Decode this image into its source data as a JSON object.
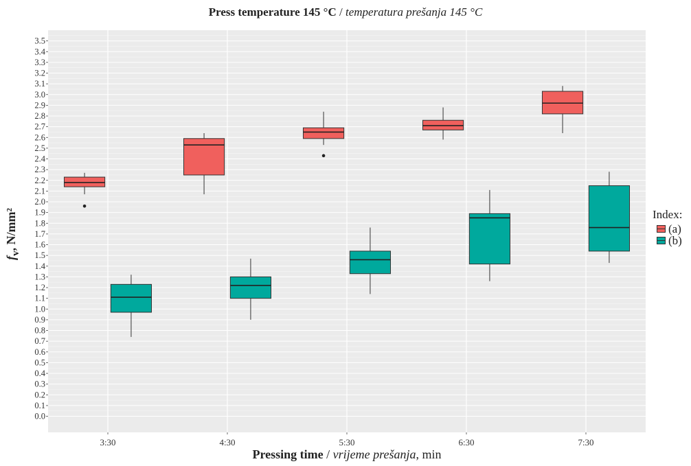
{
  "chart_data": {
    "type": "box",
    "title": {
      "bold": "Press temperature 145 °C",
      "sep": " / ",
      "italic": "temperatura prešanja 145 °C"
    },
    "xlabel": {
      "bold": "Pressing time",
      "sep": " / ",
      "italic": "vrijeme prešanja",
      "unit": ", min"
    },
    "ylabel": {
      "symbol": "f",
      "sub": "v",
      "unit": ", N/mm²"
    },
    "categories": [
      "3:30",
      "4:30",
      "5:30",
      "6:30",
      "7:30"
    ],
    "ylim": [
      -0.15,
      3.6
    ],
    "yticks": [
      "0.0",
      "0.1",
      "0.2",
      "0.3",
      "0.4",
      "0.5",
      "0.6",
      "0.7",
      "0.8",
      "0.9",
      "1.0",
      "1.1",
      "1.2",
      "1.3",
      "1.4",
      "1.5",
      "1.6",
      "1.7",
      "1.8",
      "1.9",
      "2.0",
      "2.1",
      "2.2",
      "2.3",
      "2.4",
      "2.5",
      "2.6",
      "2.7",
      "2.8",
      "2.9",
      "3.0",
      "3.1",
      "3.2",
      "3.3",
      "3.4",
      "3.5"
    ],
    "grid": true,
    "legend": {
      "title": "Index:",
      "position": "right"
    },
    "series": [
      {
        "name": "(a)",
        "color": "#F0605D",
        "boxes": [
          {
            "min": 2.07,
            "q1": 2.14,
            "median": 2.18,
            "q3": 2.23,
            "max": 2.27,
            "outliers": [
              1.96
            ]
          },
          {
            "min": 2.07,
            "q1": 2.25,
            "median": 2.53,
            "q3": 2.59,
            "max": 2.64,
            "outliers": []
          },
          {
            "min": 2.53,
            "q1": 2.59,
            "median": 2.65,
            "q3": 2.69,
            "max": 2.84,
            "outliers": [
              2.43
            ]
          },
          {
            "min": 2.58,
            "q1": 2.67,
            "median": 2.71,
            "q3": 2.76,
            "max": 2.88,
            "outliers": []
          },
          {
            "min": 2.64,
            "q1": 2.82,
            "median": 2.92,
            "q3": 3.03,
            "max": 3.08,
            "outliers": []
          }
        ]
      },
      {
        "name": "(b)",
        "color": "#00A99D",
        "boxes": [
          {
            "min": 0.74,
            "q1": 0.97,
            "median": 1.11,
            "q3": 1.23,
            "max": 1.32,
            "outliers": []
          },
          {
            "min": 0.9,
            "q1": 1.1,
            "median": 1.22,
            "q3": 1.3,
            "max": 1.47,
            "outliers": []
          },
          {
            "min": 1.14,
            "q1": 1.33,
            "median": 1.46,
            "q3": 1.54,
            "max": 1.76,
            "outliers": []
          },
          {
            "min": 1.26,
            "q1": 1.42,
            "median": 1.85,
            "q3": 1.89,
            "max": 2.11,
            "outliers": []
          },
          {
            "min": 1.43,
            "q1": 1.54,
            "median": 1.76,
            "q3": 2.15,
            "max": 2.28,
            "outliers": []
          }
        ]
      }
    ]
  }
}
